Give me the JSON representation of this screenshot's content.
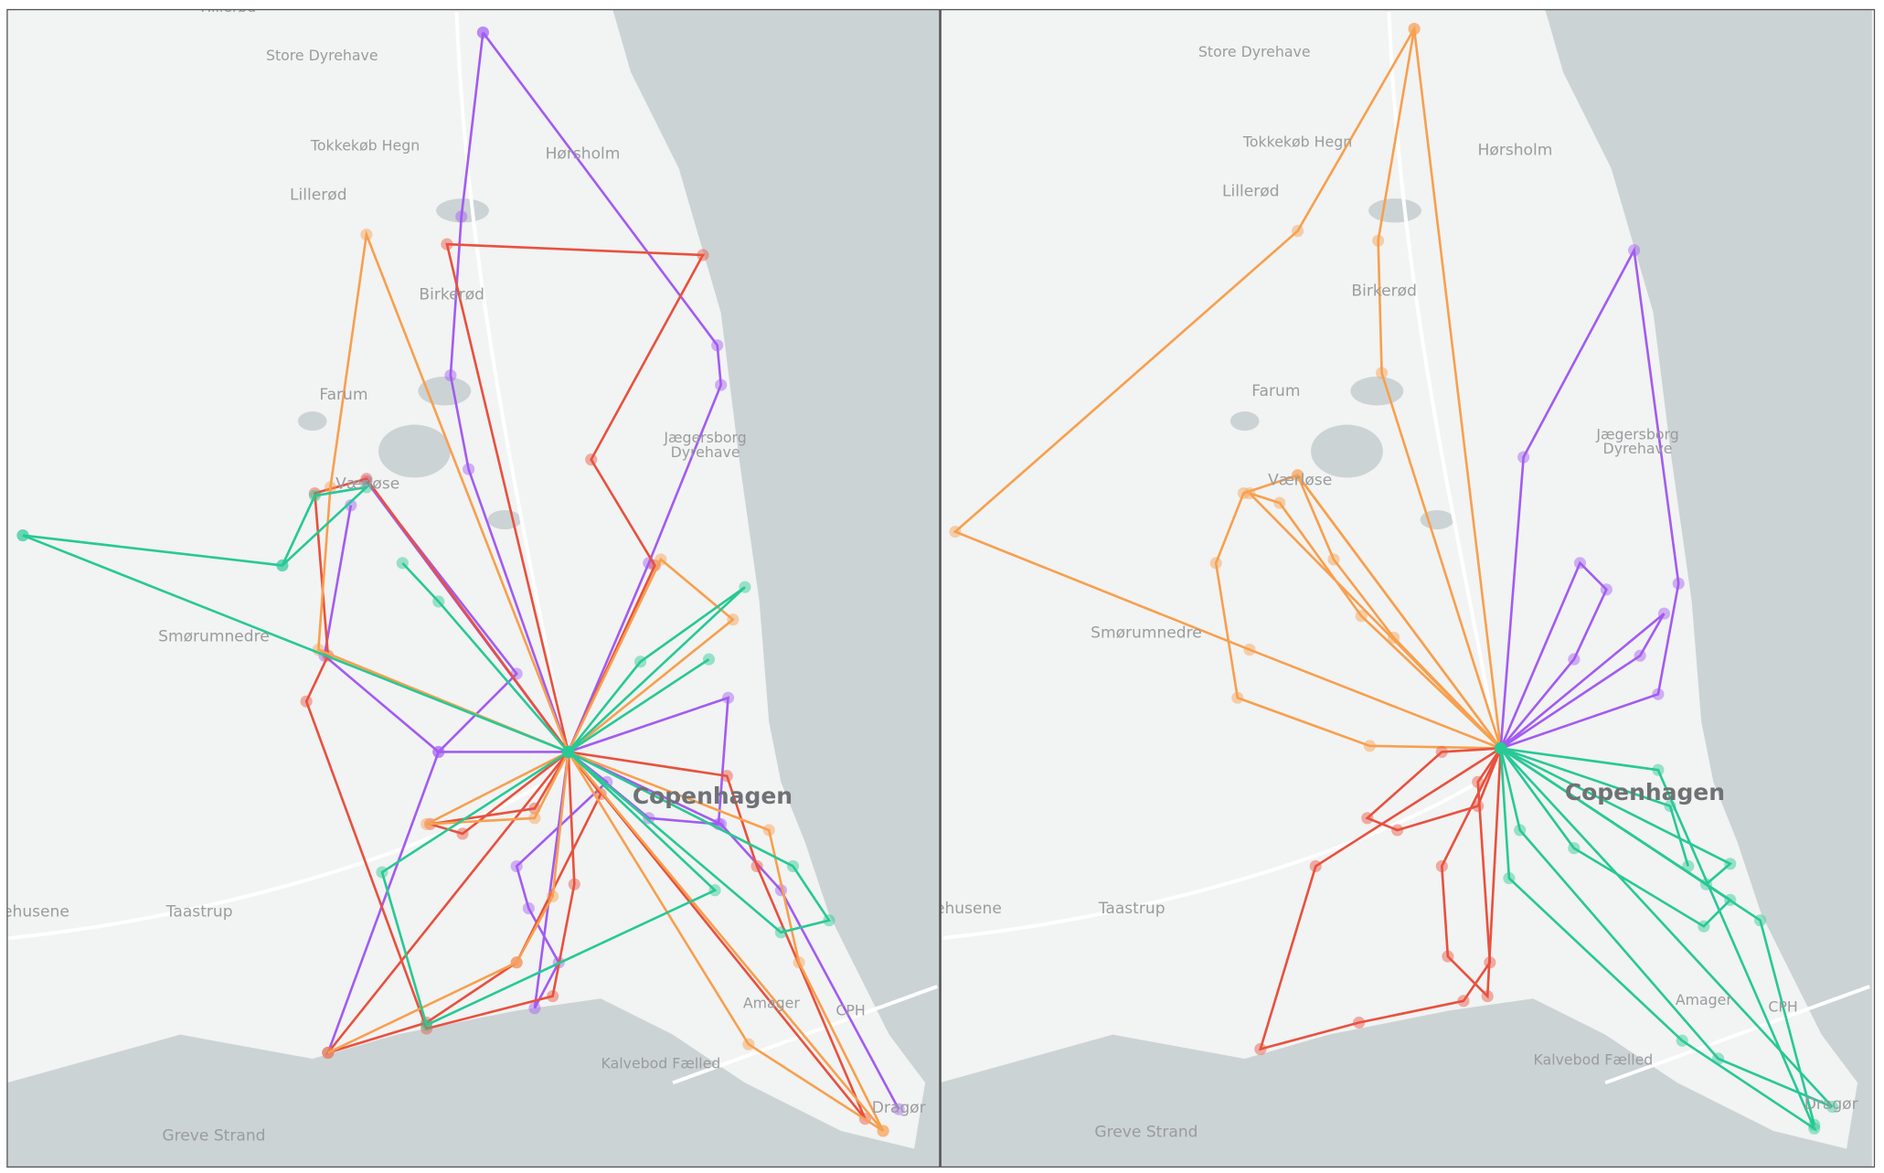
{
  "map_labels": [
    "Hillerød",
    "Store Dyrehave",
    "Tokkekøb Hegn",
    "Hørsholm",
    "Lillerød",
    "Birkerød",
    "Farum",
    "Jægersborg",
    "Dyrehave",
    "Værløse",
    "Smørumnedre",
    "Copenhagen",
    "ehusene",
    "Taastrup",
    "Amager",
    "CPH",
    "Kalvebod Fælled",
    "Greve Strand",
    "Dragør"
  ]
}
